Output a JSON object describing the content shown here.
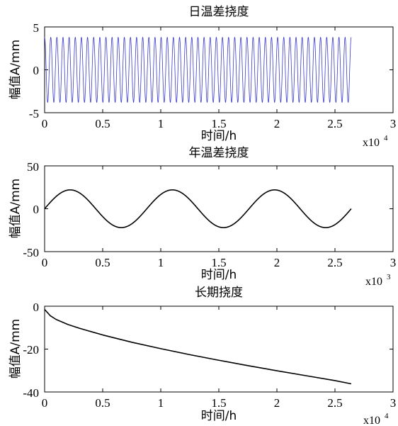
{
  "chart_data": [
    {
      "type": "line",
      "title": "日温差挠度",
      "xlabel": "时间/h",
      "ylabel": "幅值A/mm",
      "x_multiplier": "x10",
      "x_exponent": "4",
      "xlim": [
        0,
        3
      ],
      "ylim": [
        -5,
        5
      ],
      "x_ticks": [
        "0",
        "0.5",
        "1",
        "1.5",
        "2",
        "2.5",
        "3"
      ],
      "y_ticks": [
        "5",
        "0",
        "-5"
      ],
      "grid": false,
      "series": [
        {
          "color": "#3a3acc",
          "function": "sine",
          "amplitude": 3.8,
          "cycles": 50,
          "x_range": [
            0,
            2.64
          ],
          "phase_start_deg": 90
        }
      ]
    },
    {
      "type": "line",
      "title": "年温差挠度",
      "xlabel": "时间/h",
      "ylabel": "幅值A/mm",
      "x_multiplier": "x10",
      "x_exponent": "3",
      "xlim": [
        0,
        3
      ],
      "ylim": [
        -50,
        50
      ],
      "x_ticks": [
        "0",
        "0.5",
        "1",
        "1.5",
        "2",
        "2.5",
        "3"
      ],
      "y_ticks": [
        "50",
        "0",
        "-50"
      ],
      "grid": false,
      "series": [
        {
          "color": "#000000",
          "function": "sine",
          "amplitude": 22,
          "period": 0.88,
          "x_range": [
            0,
            2.64
          ],
          "phase_start_deg": 0
        }
      ]
    },
    {
      "type": "line",
      "title": "长期挠度",
      "xlabel": "时间/h",
      "ylabel": "幅值A/mm",
      "x_multiplier": "x10",
      "x_exponent": "4",
      "xlim": [
        0,
        3
      ],
      "ylim": [
        -40,
        0
      ],
      "x_ticks": [
        "0",
        "0.5",
        "1",
        "1.5",
        "2",
        "2.5",
        "3"
      ],
      "y_ticks": [
        "0",
        "-20",
        "-40"
      ],
      "grid": false,
      "series": [
        {
          "color": "#000000",
          "x": [
            0,
            0.05,
            0.1,
            0.2,
            0.3,
            0.5,
            0.75,
            1.0,
            1.25,
            1.5,
            1.75,
            2.0,
            2.25,
            2.5,
            2.64
          ],
          "y": [
            -1.5,
            -4.5,
            -6.2,
            -8.5,
            -10.3,
            -13.4,
            -16.8,
            -19.8,
            -22.6,
            -25.2,
            -27.7,
            -30.1,
            -32.4,
            -34.7,
            -36.2
          ]
        }
      ]
    }
  ]
}
